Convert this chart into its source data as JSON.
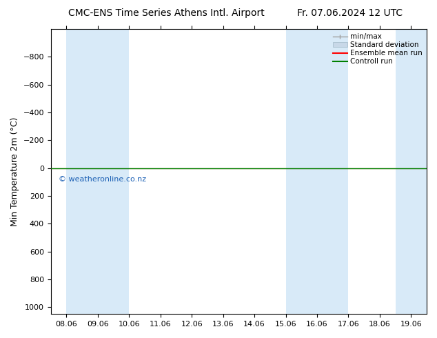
{
  "title_left": "CMC-ENS Time Series Athens Intl. Airport",
  "title_right": "Fr. 07.06.2024 12 UTC",
  "ylabel": "Min Temperature 2m (°C)",
  "ylim_bottom": 1050,
  "ylim_top": -1000,
  "yticks": [
    -800,
    -600,
    -400,
    -200,
    0,
    200,
    400,
    600,
    800,
    1000
  ],
  "xtick_labels": [
    "08.06",
    "09.06",
    "10.06",
    "11.06",
    "12.06",
    "13.06",
    "14.06",
    "15.06",
    "16.06",
    "17.06",
    "18.06",
    "19.06"
  ],
  "xtick_positions": [
    0,
    1,
    2,
    3,
    4,
    5,
    6,
    7,
    8,
    9,
    10,
    11
  ],
  "blue_bands": [
    [
      0.0,
      1.0
    ],
    [
      1.0,
      2.0
    ],
    [
      7.0,
      8.0
    ],
    [
      8.0,
      9.0
    ],
    [
      10.5,
      11.5
    ]
  ],
  "blue_band_color": "#d8eaf8",
  "control_run_color": "#008000",
  "ensemble_mean_color": "#ff0000",
  "minmax_color": "#a0a0a0",
  "std_dev_color": "#c8d8e8",
  "std_dev_edge": "#a0b8c8",
  "background_color": "#ffffff",
  "watermark": "© weatheronline.co.nz",
  "watermark_color": "#1a5fb4",
  "fig_width": 6.34,
  "fig_height": 4.9,
  "dpi": 100
}
